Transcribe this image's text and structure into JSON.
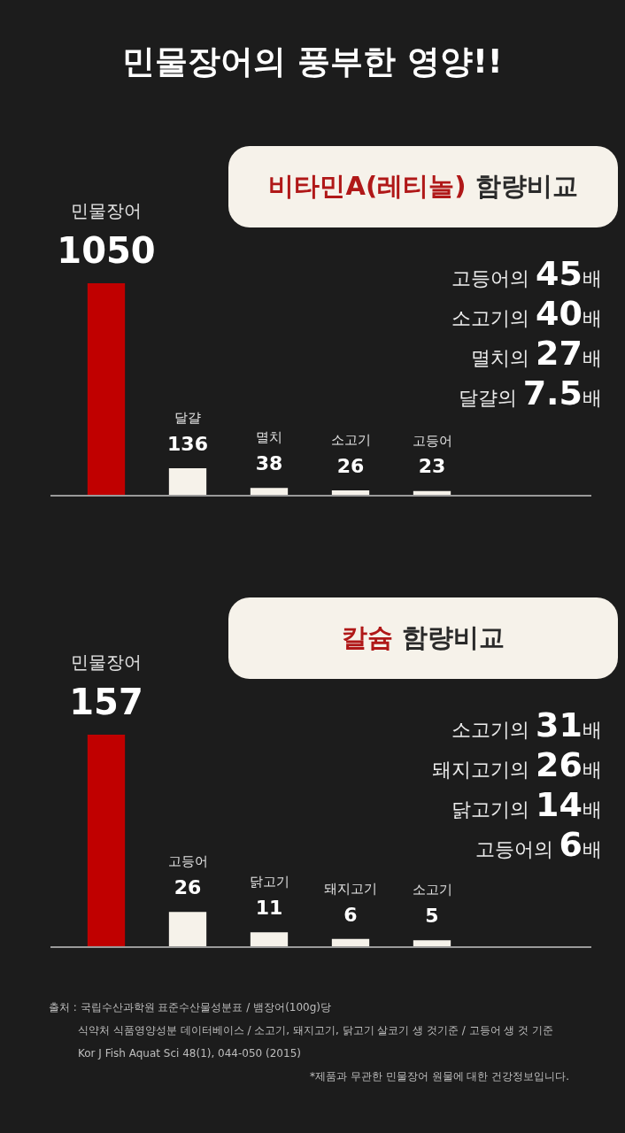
{
  "chart_data": [
    {
      "type": "other",
      "title": "민물장어의 풍부한 영양!!"
    },
    {
      "type": "bar",
      "title": "비타민A(레티놀) 함량비교",
      "categories": [
        "민물장어",
        "달걀",
        "멸치",
        "소고기",
        "고등어"
      ],
      "values": [
        1050,
        136,
        38,
        26,
        23
      ],
      "colors": [
        "#c00000",
        "#f6f2ea",
        "#f6f2ea",
        "#f6f2ea",
        "#f6f2ea"
      ],
      "data_labels": true,
      "tick_labels": false,
      "annotations": [
        "고등어의 45배",
        "소고기의 40배",
        "멸치의 27배",
        "달걀의 7.5배"
      ]
    },
    {
      "type": "bar",
      "title": "칼슘 함량비교",
      "categories": [
        "민물장어",
        "고등어",
        "닭고기",
        "돼지고기",
        "소고기"
      ],
      "values": [
        157,
        26,
        11,
        6,
        5
      ],
      "colors": [
        "#c00000",
        "#f6f2ea",
        "#f6f2ea",
        "#f6f2ea",
        "#f6f2ea"
      ],
      "data_labels": true,
      "tick_labels": false,
      "annotations": [
        "소고기의 31배",
        "돼지고기의 26배",
        "닭고기의 14배",
        "고등어의 6배"
      ]
    },
    {
      "type": "other",
      "annotations": [
        "출처 : 국립수산과학원 표준수산물성분표 / 뱀장어(100g)당",
        "식약처 식품영양성분 데이터베이스 / 소고기, 돼지고기, 닭고기 살코기 생 것기준 / 고등어 생 것 기준",
        "Kor J Fish Aquat Sci 48(1), 044-050 (2015)",
        "*제품과 무관한 민물장어 원물에 대한 건강정보입니다."
      ]
    }
  ]
}
